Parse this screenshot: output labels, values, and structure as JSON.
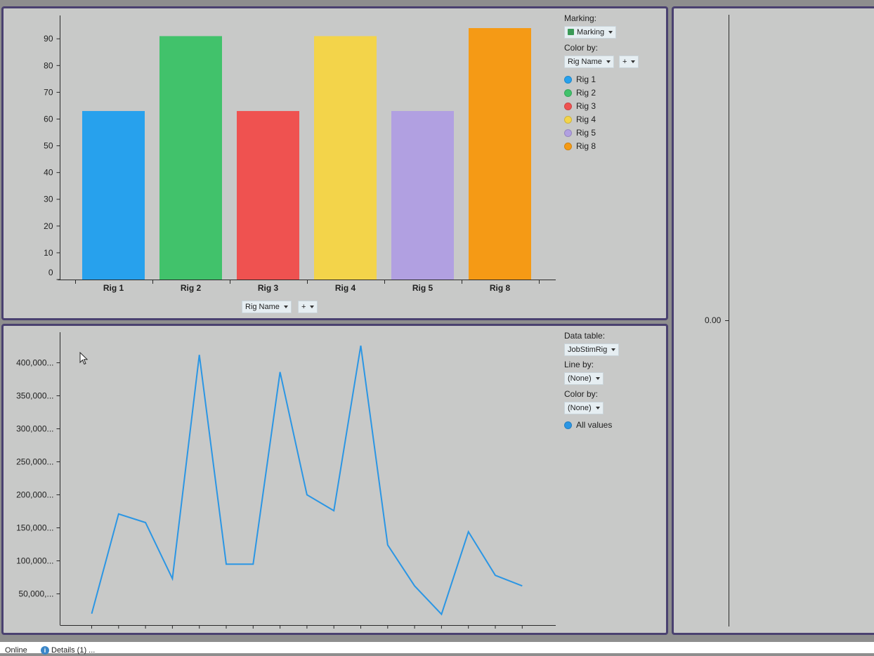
{
  "bar_panel": {
    "marking_label": "Marking:",
    "marking_value": "Marking",
    "marking_color": "#3a9a57",
    "color_by_label": "Color by:",
    "color_by_value": "Rig Name",
    "color_by_add": "+",
    "x_axis_selector": "Rig Name",
    "x_axis_add": "+",
    "legend": [
      {
        "label": "Rig 1",
        "color": "#27a1ed"
      },
      {
        "label": "Rig 2",
        "color": "#41c26b"
      },
      {
        "label": "Rig 3",
        "color": "#ef5250"
      },
      {
        "label": "Rig 4",
        "color": "#f3d44a"
      },
      {
        "label": "Rig 5",
        "color": "#b1a0e1"
      },
      {
        "label": "Rig 8",
        "color": "#f59a15"
      }
    ]
  },
  "line_panel": {
    "data_table_label": "Data table:",
    "data_table_value": "JobStimRig",
    "line_by_label": "Line by:",
    "line_by_value": "(None)",
    "color_by_label": "Color by:",
    "color_by_value": "(None)",
    "legend": [
      {
        "label": "All values",
        "color": "#2b96e4"
      }
    ]
  },
  "right_panel": {
    "axis_value": "0.00"
  },
  "status": {
    "online": "Online",
    "details": "Details (1) ..."
  },
  "chart_data": [
    {
      "type": "bar",
      "categories": [
        "Rig 1",
        "Rig 2",
        "Rig 3",
        "Rig 4",
        "Rig 5",
        "Rig 8"
      ],
      "values": [
        63,
        91,
        63,
        91,
        63,
        94
      ],
      "colors": [
        "#27a1ed",
        "#41c26b",
        "#ef5250",
        "#f3d44a",
        "#b1a0e1",
        "#f59a15"
      ],
      "yticks": [
        "0",
        "10",
        "20",
        "30",
        "40",
        "50",
        "60",
        "70",
        "80",
        "90"
      ],
      "ylim": [
        0,
        98
      ],
      "title": "",
      "xlabel": "",
      "ylabel": ""
    },
    {
      "type": "line",
      "x": [
        1,
        2,
        3,
        4,
        5,
        6,
        7,
        8,
        9,
        10,
        11,
        12,
        13,
        14,
        15,
        16,
        17
      ],
      "series": [
        {
          "values": [
            20000,
            171000,
            158000,
            73000,
            412000,
            95000,
            95000,
            386000,
            200000,
            176000,
            426000,
            124000,
            62000,
            19000,
            144000,
            78000,
            62000
          ]
        }
      ],
      "yticks": [
        "50,000,...",
        "100,000...",
        "150,000...",
        "200,000...",
        "250,000...",
        "300,000...",
        "350,000...",
        "400,000..."
      ],
      "ytick_values": [
        50000,
        100000,
        150000,
        200000,
        250000,
        300000,
        350000,
        400000
      ],
      "ylim": [
        5000,
        445000
      ],
      "color": "#2b96e4",
      "title": "",
      "xlabel": "",
      "ylabel": ""
    }
  ]
}
